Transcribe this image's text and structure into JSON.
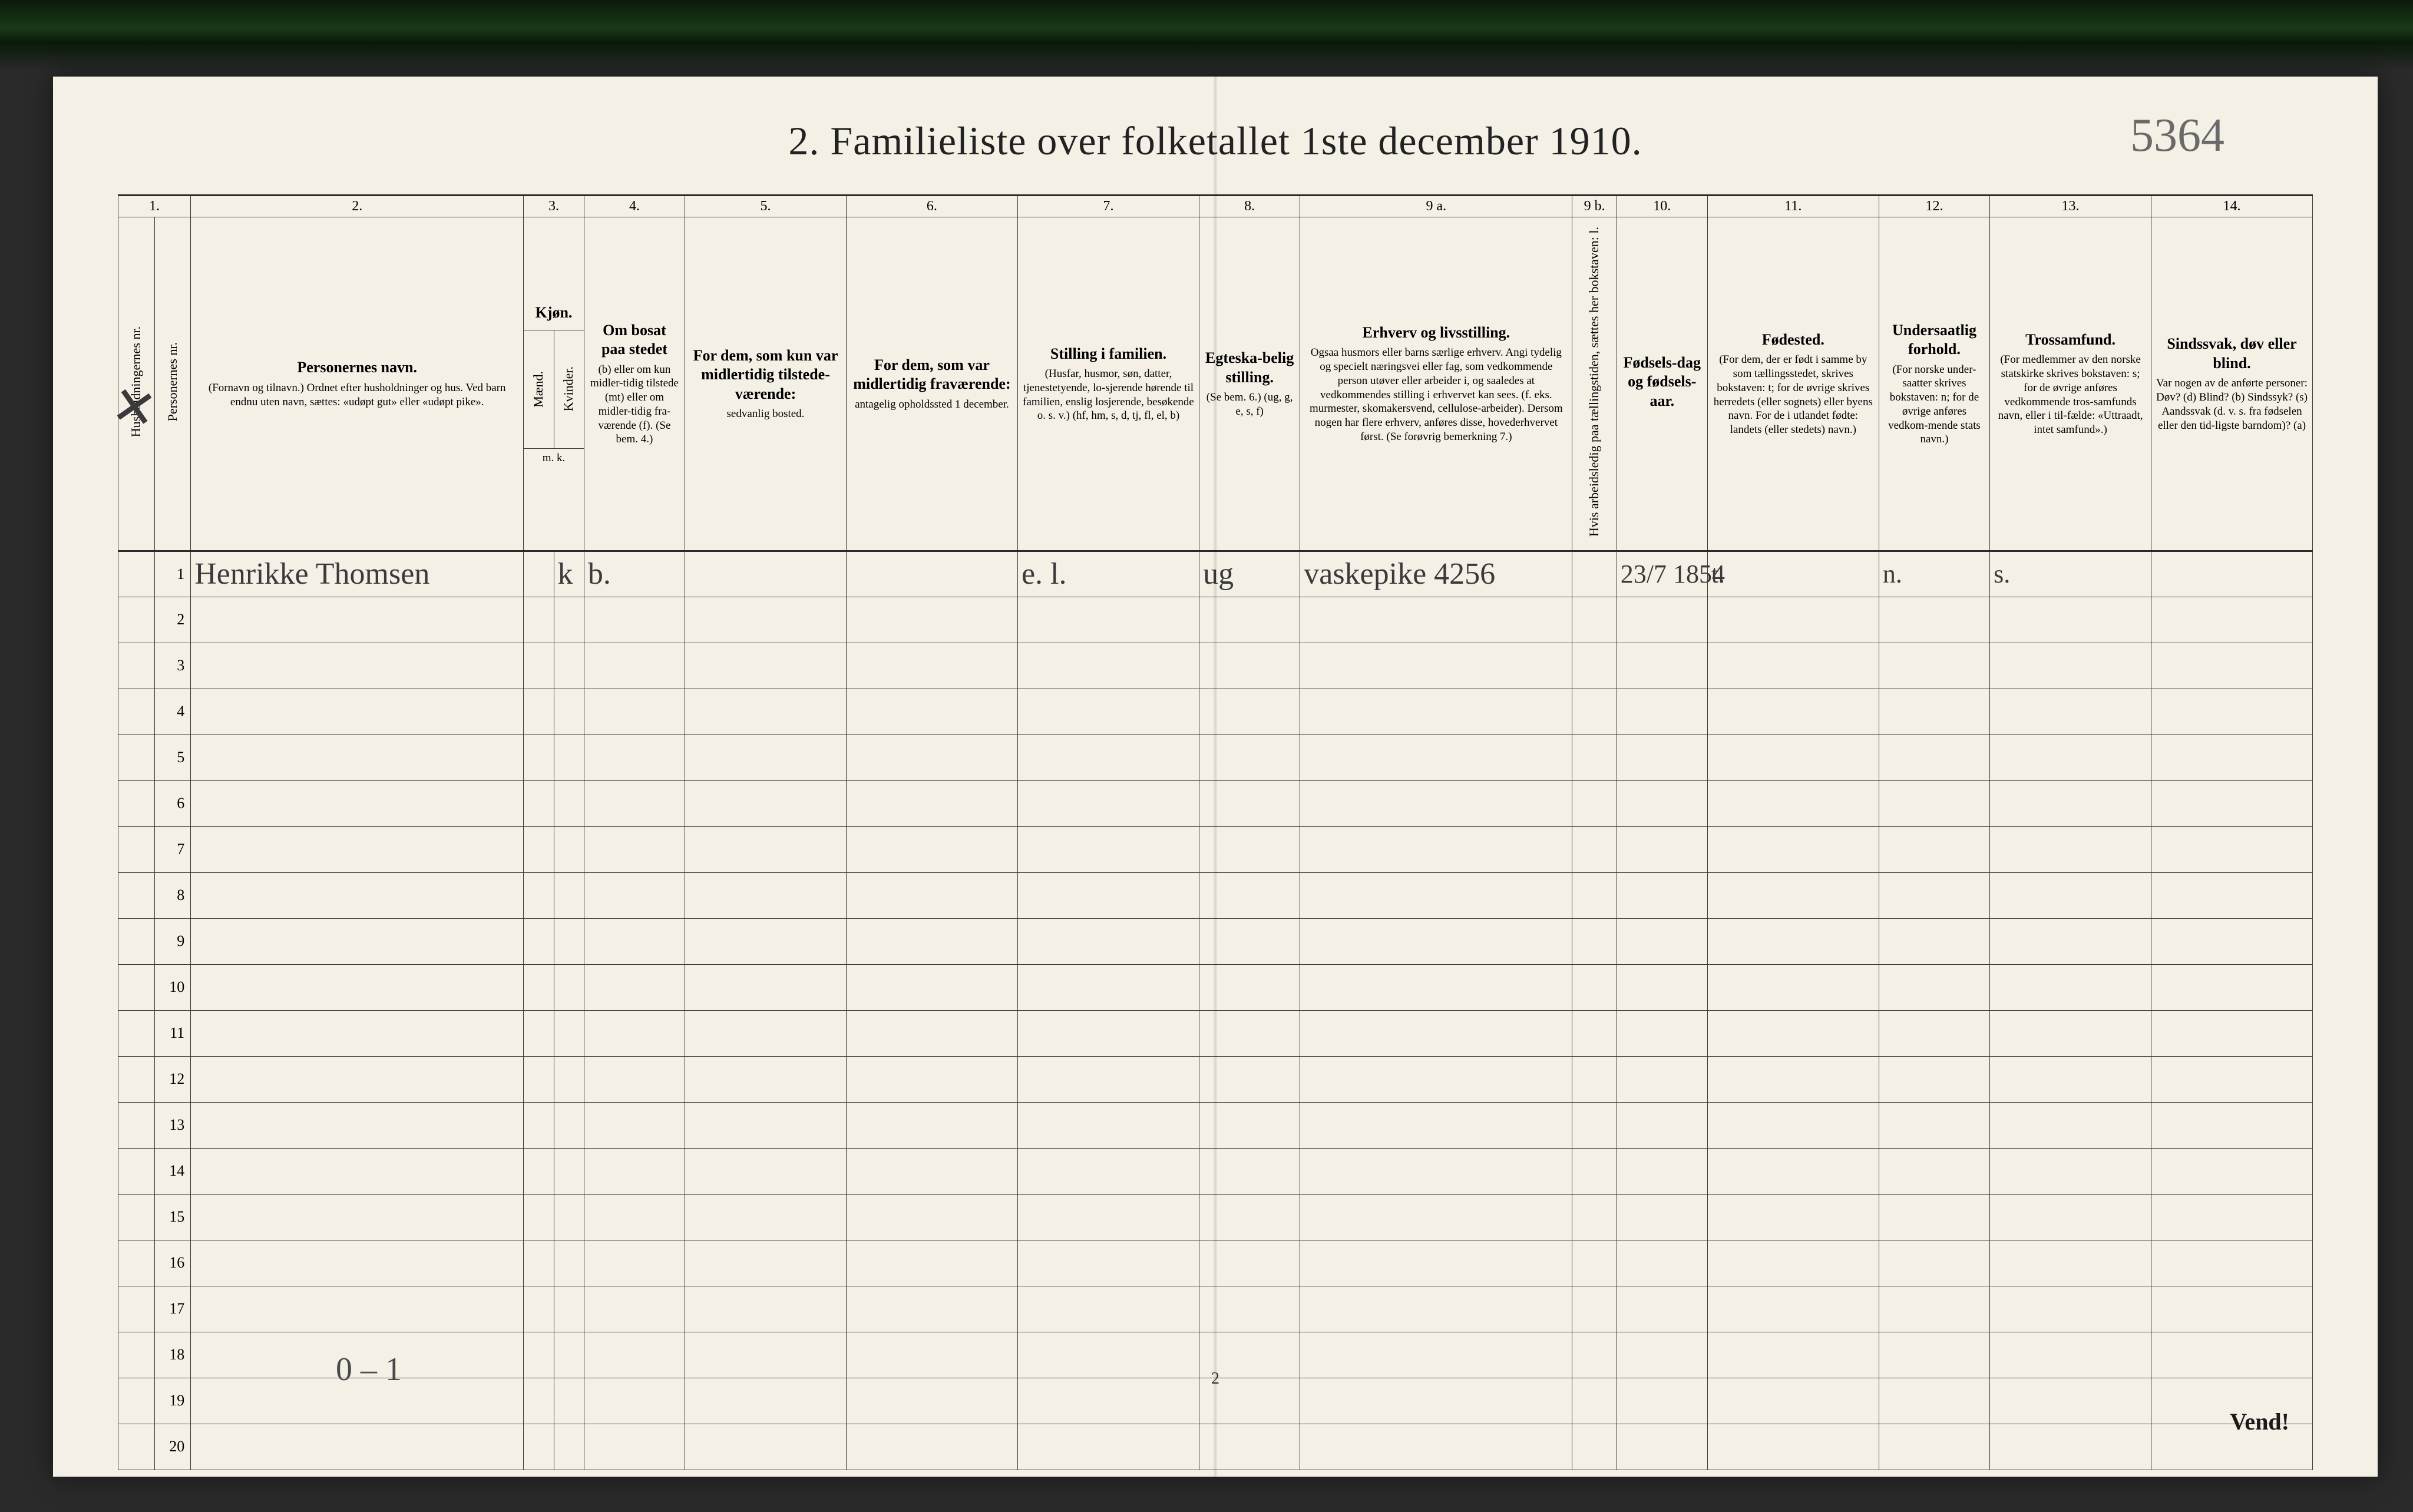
{
  "document": {
    "title": "2.  Familieliste over folketallet 1ste december 1910.",
    "handwritten_id": "5364",
    "foot_page_number": "2",
    "turn_over": "Vend!"
  },
  "columns": {
    "nums": [
      "1.",
      "2.",
      "3.",
      "4.",
      "5.",
      "6.",
      "7.",
      "8.",
      "9 a.",
      "9 b.",
      "10.",
      "11.",
      "12.",
      "13.",
      "14."
    ],
    "c1a": "Husholdningernes nr.",
    "c1b": "Personernes nr.",
    "c2_main": "Personernes navn.",
    "c2_sub": "(Fornavn og tilnavn.)\nOrdnet efter husholdninger og hus.\nVed barn endnu uten navn, sættes: «udøpt gut» eller «udøpt pike».",
    "c3_main": "Kjøn.",
    "c3a": "Mænd.",
    "c3b": "Kvinder.",
    "c3_sub": "m.  k.",
    "c4_main": "Om bosat paa stedet",
    "c4_sub": "(b) eller om kun midler-tidig tilstede (mt) eller om midler-tidig fra-værende (f). (Se bem. 4.)",
    "c5_main": "For dem, som kun var midlertidig tilstede-værende:",
    "c5_sub": "sedvanlig bosted.",
    "c6_main": "For dem, som var midlertidig fraværende:",
    "c6_sub": "antagelig opholdssted 1 december.",
    "c7_main": "Stilling i familien.",
    "c7_sub": "(Husfar, husmor, søn, datter, tjenestetyende, lo-sjerende hørende til familien, enslig losjerende, besøkende o. s. v.)\n(hf, hm, s, d, tj, fl, el, b)",
    "c8_main": "Egteska-belig stilling.",
    "c8_sub": "(Se bem. 6.)\n(ug, g, e, s, f)",
    "c9a_main": "Erhverv og livsstilling.",
    "c9a_sub": "Ogsaa husmors eller barns særlige erhverv. Angi tydelig og specielt næringsvei eller fag, som vedkommende person utøver eller arbeider i, og saaledes at vedkommendes stilling i erhvervet kan sees. (f. eks. murmester, skomakersvend, cellulose-arbeider). Dersom nogen har flere erhverv, anføres disse, hovederhvervet først.\n(Se forøvrig bemerkning 7.)",
    "c9b": "Hvis arbeidsledig paa tællingstiden, sættes her bokstaven: l.",
    "c10_main": "Fødsels-dag og fødsels-aar.",
    "c11_main": "Fødested.",
    "c11_sub": "(For dem, der er født i samme by som tællingsstedet, skrives bokstaven: t; for de øvrige skrives herredets (eller sognets) eller byens navn. For de i utlandet fødte: landets (eller stedets) navn.)",
    "c12_main": "Undersaatlig forhold.",
    "c12_sub": "(For norske under-saatter skrives bokstaven: n; for de øvrige anføres vedkom-mende stats navn.)",
    "c13_main": "Trossamfund.",
    "c13_sub": "(For medlemmer av den norske statskirke skrives bokstaven: s; for de øvrige anføres vedkommende tros-samfunds navn, eller i til-fælde: «Uttraadt, intet samfund».)",
    "c14_main": "Sindssvak, døv eller blind.",
    "c14_sub": "Var nogen av de anførte personer:\nDøv?        (d)\nBlind?      (b)\nSindssyk?  (s)\nAandssvak (d. v. s. fra fødselen eller den tid-ligste barndom)?  (a)"
  },
  "row_count": 20,
  "entries": [
    {
      "row": 1,
      "struck": true,
      "name": "Henrikke Thomsen",
      "sex": "k",
      "residence": "b.",
      "family_position": "e. l.",
      "marital": "ug",
      "occupation": "vaskepike 4256",
      "birth": "23/7 1854",
      "birthplace": "t.",
      "nationality": "n.",
      "religion": "s."
    }
  ],
  "below_note": "0 – 1",
  "style": {
    "paper_bg": "#f4f0e6",
    "ink": "#222222",
    "rule": "#3a3a3a",
    "hand_ink": "#3a3a3a",
    "col_widths_pct": [
      1.8,
      1.8,
      16.5,
      1.5,
      1.5,
      5.0,
      8.0,
      8.5,
      9.0,
      5.0,
      13.5,
      2.2,
      4.5,
      8.5,
      5.5,
      8.0,
      8.0
    ]
  }
}
